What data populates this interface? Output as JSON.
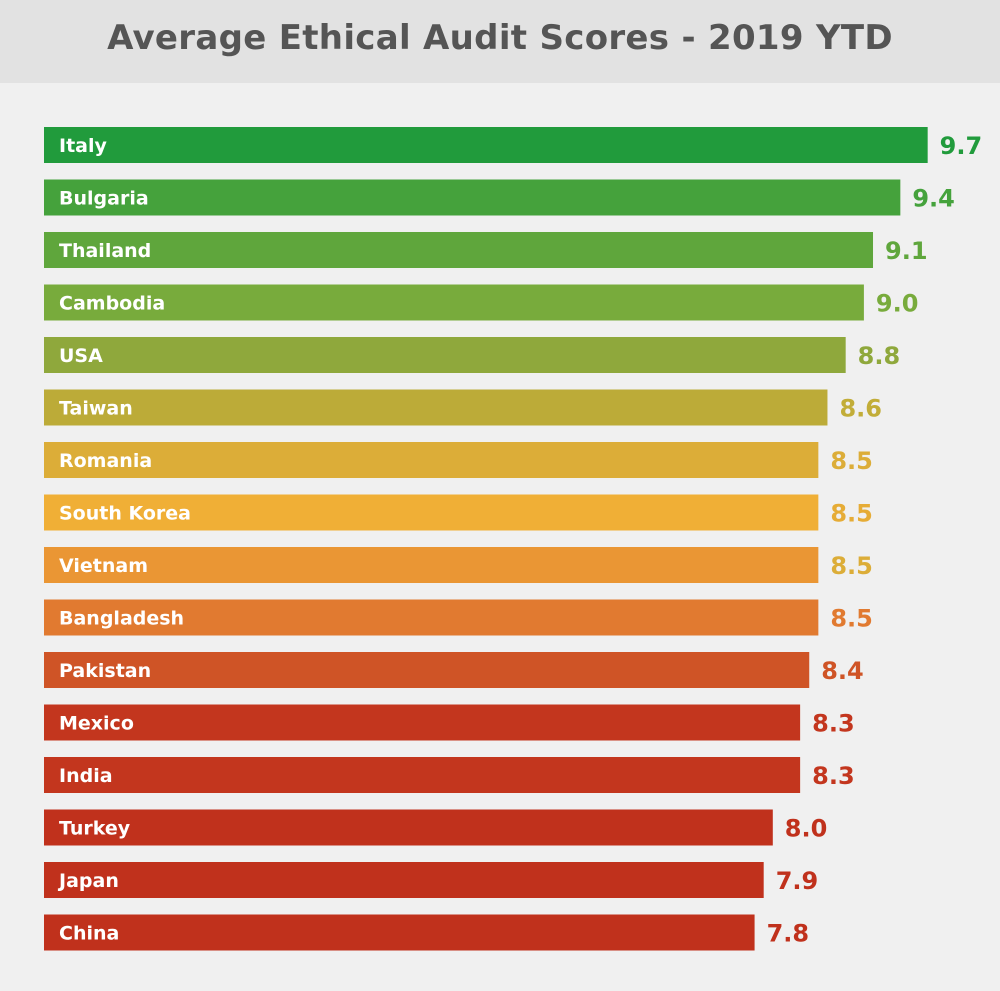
{
  "chart_data": {
    "type": "bar",
    "orientation": "horizontal",
    "title": "Average Ethical Audit Scores - 2019 YTD",
    "xlabel": "",
    "ylabel": "",
    "grid": false,
    "legend": "none",
    "categories": [
      "Italy",
      "Bulgaria",
      "Thailand",
      "Cambodia",
      "USA",
      "Taiwan",
      "Romania",
      "South Korea",
      "Vietnam",
      "Bangladesh",
      "Pakistan",
      "Mexico",
      "India",
      "Turkey",
      "Japan",
      "China"
    ],
    "values": [
      9.7,
      9.4,
      9.1,
      9.0,
      8.8,
      8.6,
      8.5,
      8.5,
      8.5,
      8.5,
      8.4,
      8.3,
      8.3,
      8.0,
      7.9,
      7.8
    ],
    "value_labels": [
      "9.7",
      "9.4",
      "9.1",
      "9.0",
      "8.8",
      "8.6",
      "8.5",
      "8.5",
      "8.5",
      "8.5",
      "8.4",
      "8.3",
      "8.3",
      "8.0",
      "7.9",
      "7.8"
    ],
    "colors": [
      "#219b3c",
      "#45a23c",
      "#5fa63c",
      "#78ab3c",
      "#8fa83c",
      "#bcab38",
      "#dcad38",
      "#f0af36",
      "#ea9634",
      "#e17a30",
      "#cf5426",
      "#c3361e",
      "#c3361e",
      "#c0311c",
      "#c0311c",
      "#c0311c"
    ],
    "value_label_colors": [
      "#219b3c",
      "#45a23c",
      "#5fa63c",
      "#78ab3c",
      "#8fa83c",
      "#c2ad38",
      "#dcad38",
      "#e6ac36",
      "#dcad38",
      "#e17a30",
      "#cf5426",
      "#c3361e",
      "#c3361e",
      "#c0311c",
      "#c0311c",
      "#c0311c"
    ],
    "background": "#f0f0f0",
    "header_background": "#e2e2e2",
    "title_color": "#555555"
  }
}
